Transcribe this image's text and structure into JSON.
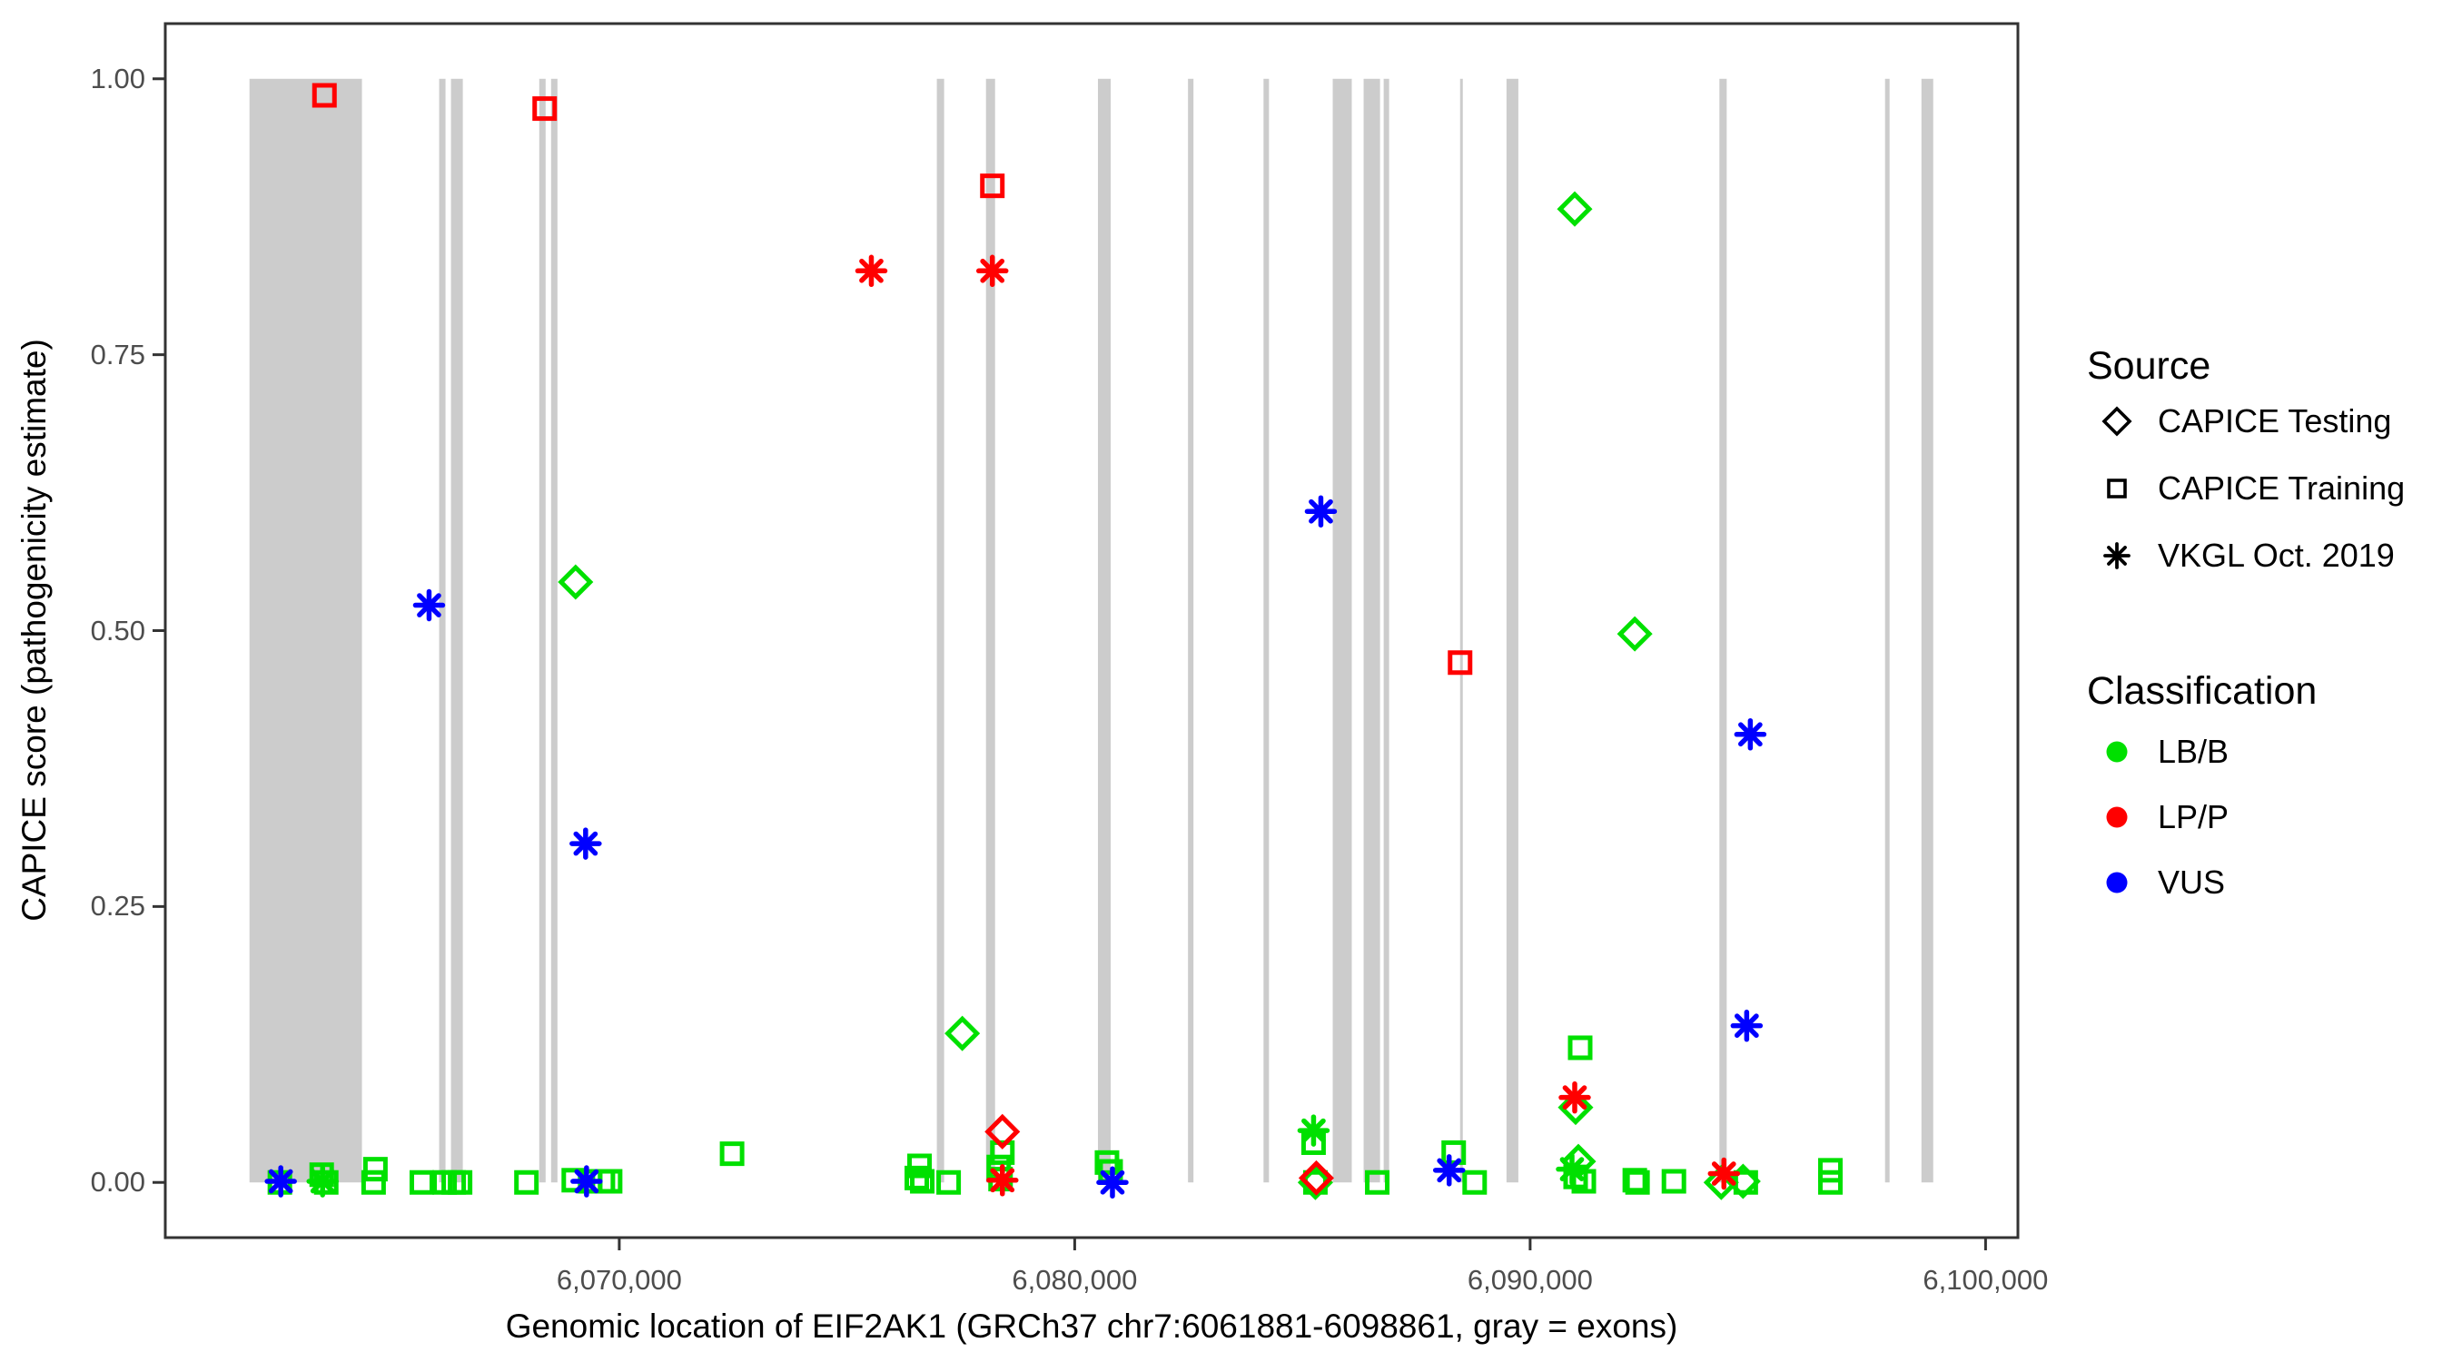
{
  "figure": {
    "y_axis_title": "CAPICE score (pathogenicity estimate)",
    "x_axis_title": "Genomic location of EIF2AK1 (GRCh37 chr7:6061881-6098861, gray = exons)"
  },
  "legend": {
    "source": {
      "title": "Source",
      "items": [
        {
          "shape": "diamond",
          "label": "CAPICE Testing"
        },
        {
          "shape": "square",
          "label": "CAPICE Training"
        },
        {
          "shape": "asterisk",
          "label": "VKGL Oct. 2019"
        }
      ]
    },
    "classification": {
      "title": "Classification",
      "items": [
        {
          "label": "LB/B",
          "color": "#00E000"
        },
        {
          "label": "LP/P",
          "color": "#FF0000"
        },
        {
          "label": "VUS",
          "color": "#0000FF"
        }
      ]
    }
  },
  "colors": {
    "lbb": "#00E000",
    "lpp": "#FF0000",
    "vus": "#0000FF",
    "exon_gray": "#CCCCCC",
    "panel_border": "#333333",
    "tick_label": "#4d4d4d"
  },
  "chart_data": {
    "type": "scatter",
    "title": "",
    "xlabel": "Genomic location of EIF2AK1 (GRCh37 chr7:6061881-6098861, gray = exons)",
    "ylabel": "CAPICE score (pathogenicity estimate)",
    "xlim": [
      6060032,
      6100710
    ],
    "ylim": [
      -0.05,
      1.05
    ],
    "grid": false,
    "legend_position": "right",
    "x_ticks": [
      {
        "value": 6070000,
        "label": "6,070,000"
      },
      {
        "value": 6080000,
        "label": "6,080,000"
      },
      {
        "value": 6090000,
        "label": "6,090,000"
      },
      {
        "value": 6100000,
        "label": "6,100,000"
      }
    ],
    "y_ticks": [
      {
        "value": 0.0,
        "label": "0.00"
      },
      {
        "value": 0.25,
        "label": "0.25"
      },
      {
        "value": 0.5,
        "label": "0.50"
      },
      {
        "value": 0.75,
        "label": "0.75"
      },
      {
        "value": 1.0,
        "label": "1.00"
      }
    ],
    "shape_meaning": {
      "diamond": "CAPICE Testing",
      "square": "CAPICE Training",
      "asterisk": "VKGL Oct. 2019"
    },
    "class_colors": {
      "LB/B": "#00E000",
      "LP/P": "#FF0000",
      "VUS": "#0000FF"
    },
    "exon_bands": [
      [
        6061881,
        6064350
      ],
      [
        6066045,
        6066185
      ],
      [
        6066305,
        6066565
      ],
      [
        6068243,
        6068383
      ],
      [
        6068503,
        6068643
      ],
      [
        6076973,
        6077133
      ],
      [
        6078052,
        6078252
      ],
      [
        6080510,
        6080790
      ],
      [
        6082488,
        6082608
      ],
      [
        6084146,
        6084266
      ],
      [
        6085665,
        6086084
      ],
      [
        6086344,
        6086704
      ],
      [
        6086784,
        6086904
      ],
      [
        6088462,
        6088522
      ],
      [
        6089481,
        6089741
      ],
      [
        6094156,
        6094316
      ],
      [
        6097793,
        6097892
      ],
      [
        6098592,
        6098851
      ]
    ],
    "points": [
      {
        "pos": 6062548,
        "score": 0.0,
        "source": "CAPICE Training",
        "class": "LB/B"
      },
      {
        "pos": 6063466,
        "score": 0.007,
        "source": "CAPICE Training",
        "class": "LB/B"
      },
      {
        "pos": 6063566,
        "score": 0.0,
        "source": "CAPICE Training",
        "class": "LB/B"
      },
      {
        "pos": 6064646,
        "score": 0.012,
        "source": "CAPICE Training",
        "class": "LB/B"
      },
      {
        "pos": 6064606,
        "score": 0.0,
        "source": "CAPICE Training",
        "class": "LB/B"
      },
      {
        "pos": 6065665,
        "score": 0.0,
        "source": "CAPICE Training",
        "class": "LB/B"
      },
      {
        "pos": 6066165,
        "score": 0.0,
        "source": "CAPICE Training",
        "class": "LB/B"
      },
      {
        "pos": 6066365,
        "score": 0.0,
        "source": "CAPICE Training",
        "class": "LB/B"
      },
      {
        "pos": 6066505,
        "score": 0.0,
        "source": "CAPICE Training",
        "class": "LB/B"
      },
      {
        "pos": 6067962,
        "score": 0.0,
        "source": "CAPICE Training",
        "class": "LB/B"
      },
      {
        "pos": 6069001,
        "score": 0.002,
        "source": "CAPICE Training",
        "class": "LB/B"
      },
      {
        "pos": 6069361,
        "score": 0.001,
        "source": "CAPICE Training",
        "class": "LB/B"
      },
      {
        "pos": 6069641,
        "score": 0.001,
        "source": "CAPICE Training",
        "class": "LB/B"
      },
      {
        "pos": 6069800,
        "score": 0.001,
        "source": "CAPICE Training",
        "class": "LB/B"
      },
      {
        "pos": 6072477,
        "score": 0.026,
        "source": "CAPICE Training",
        "class": "LB/B"
      },
      {
        "pos": 6076593,
        "score": 0.015,
        "source": "CAPICE Training",
        "class": "LB/B"
      },
      {
        "pos": 6076533,
        "score": 0.004,
        "source": "CAPICE Training",
        "class": "LB/B"
      },
      {
        "pos": 6076653,
        "score": 0.001,
        "source": "CAPICE Training",
        "class": "LB/B"
      },
      {
        "pos": 6077232,
        "score": 0.0,
        "source": "CAPICE Training",
        "class": "LB/B"
      },
      {
        "pos": 6078412,
        "score": 0.027,
        "source": "CAPICE Training",
        "class": "LB/B"
      },
      {
        "pos": 6078332,
        "score": 0.014,
        "source": "CAPICE Training",
        "class": "LB/B"
      },
      {
        "pos": 6078372,
        "score": 0.003,
        "source": "CAPICE Training",
        "class": "LB/B"
      },
      {
        "pos": 6080709,
        "score": 0.018,
        "source": "CAPICE Training",
        "class": "LB/B"
      },
      {
        "pos": 6080789,
        "score": 0.01,
        "source": "CAPICE Training",
        "class": "LB/B"
      },
      {
        "pos": 6085245,
        "score": 0.036,
        "source": "CAPICE Training",
        "class": "LB/B"
      },
      {
        "pos": 6085285,
        "score": 0.0,
        "source": "CAPICE Training",
        "class": "LB/B"
      },
      {
        "pos": 6086643,
        "score": 0.0,
        "source": "CAPICE Training",
        "class": "LB/B"
      },
      {
        "pos": 6088322,
        "score": 0.027,
        "source": "CAPICE Training",
        "class": "LB/B"
      },
      {
        "pos": 6088782,
        "score": 0.0,
        "source": "CAPICE Training",
        "class": "LB/B"
      },
      {
        "pos": 6091099,
        "score": 0.122,
        "source": "CAPICE Training",
        "class": "LB/B"
      },
      {
        "pos": 6090999,
        "score": 0.005,
        "source": "CAPICE Training",
        "class": "LB/B"
      },
      {
        "pos": 6091179,
        "score": 0.001,
        "source": "CAPICE Training",
        "class": "LB/B"
      },
      {
        "pos": 6092298,
        "score": 0.002,
        "source": "CAPICE Training",
        "class": "LB/B"
      },
      {
        "pos": 6092358,
        "score": 0.0,
        "source": "CAPICE Training",
        "class": "LB/B"
      },
      {
        "pos": 6093157,
        "score": 0.001,
        "source": "CAPICE Training",
        "class": "LB/B"
      },
      {
        "pos": 6094735,
        "score": 0.0,
        "source": "CAPICE Training",
        "class": "LB/B"
      },
      {
        "pos": 6096593,
        "score": 0.011,
        "source": "CAPICE Training",
        "class": "LB/B"
      },
      {
        "pos": 6096593,
        "score": 0.0,
        "source": "CAPICE Training",
        "class": "LB/B"
      },
      {
        "pos": 6063527,
        "score": 0.985,
        "source": "CAPICE Training",
        "class": "LP/P"
      },
      {
        "pos": 6068362,
        "score": 0.973,
        "source": "CAPICE Training",
        "class": "LP/P"
      },
      {
        "pos": 6078192,
        "score": 0.903,
        "source": "CAPICE Training",
        "class": "LP/P"
      },
      {
        "pos": 6088462,
        "score": 0.471,
        "source": "CAPICE Training",
        "class": "LP/P"
      },
      {
        "pos": 6090979,
        "score": 0.882,
        "source": "CAPICE Testing",
        "class": "LB/B"
      },
      {
        "pos": 6069041,
        "score": 0.544,
        "source": "CAPICE Testing",
        "class": "LB/B"
      },
      {
        "pos": 6092298,
        "score": 0.497,
        "source": "CAPICE Testing",
        "class": "LB/B"
      },
      {
        "pos": 6077532,
        "score": 0.135,
        "source": "CAPICE Testing",
        "class": "LB/B"
      },
      {
        "pos": 6090999,
        "score": 0.068,
        "source": "CAPICE Testing",
        "class": "LB/B"
      },
      {
        "pos": 6091059,
        "score": 0.019,
        "source": "CAPICE Testing",
        "class": "LB/B"
      },
      {
        "pos": 6094196,
        "score": 0.0,
        "source": "CAPICE Testing",
        "class": "LB/B"
      },
      {
        "pos": 6094675,
        "score": 0.001,
        "source": "CAPICE Testing",
        "class": "LB/B"
      },
      {
        "pos": 6085285,
        "score": 0.0,
        "source": "CAPICE Testing",
        "class": "LB/B"
      },
      {
        "pos": 6078412,
        "score": 0.046,
        "source": "CAPICE Testing",
        "class": "LP/P"
      },
      {
        "pos": 6085305,
        "score": 0.004,
        "source": "CAPICE Testing",
        "class": "LP/P"
      },
      {
        "pos": 6075535,
        "score": 0.826,
        "source": "VKGL Oct. 2019",
        "class": "LP/P"
      },
      {
        "pos": 6078192,
        "score": 0.826,
        "source": "VKGL Oct. 2019",
        "class": "LP/P"
      },
      {
        "pos": 6090979,
        "score": 0.077,
        "source": "VKGL Oct. 2019",
        "class": "LP/P"
      },
      {
        "pos": 6094255,
        "score": 0.008,
        "source": "VKGL Oct. 2019",
        "class": "LP/P"
      },
      {
        "pos": 6078412,
        "score": 0.002,
        "source": "VKGL Oct. 2019",
        "class": "LP/P"
      },
      {
        "pos": 6065824,
        "score": 0.523,
        "source": "VKGL Oct. 2019",
        "class": "VUS"
      },
      {
        "pos": 6085405,
        "score": 0.608,
        "source": "VKGL Oct. 2019",
        "class": "VUS"
      },
      {
        "pos": 6069261,
        "score": 0.307,
        "source": "VKGL Oct. 2019",
        "class": "VUS"
      },
      {
        "pos": 6094835,
        "score": 0.406,
        "source": "VKGL Oct. 2019",
        "class": "VUS"
      },
      {
        "pos": 6094755,
        "score": 0.142,
        "source": "VKGL Oct. 2019",
        "class": "VUS"
      },
      {
        "pos": 6062568,
        "score": 0.001,
        "source": "VKGL Oct. 2019",
        "class": "VUS"
      },
      {
        "pos": 6069281,
        "score": 0.001,
        "source": "VKGL Oct. 2019",
        "class": "VUS"
      },
      {
        "pos": 6080829,
        "score": 0.0,
        "source": "VKGL Oct. 2019",
        "class": "VUS"
      },
      {
        "pos": 6088222,
        "score": 0.011,
        "source": "VKGL Oct. 2019",
        "class": "VUS"
      },
      {
        "pos": 6063486,
        "score": 0.001,
        "source": "VKGL Oct. 2019",
        "class": "LB/B"
      },
      {
        "pos": 6085245,
        "score": 0.047,
        "source": "VKGL Oct. 2019",
        "class": "LB/B"
      },
      {
        "pos": 6090919,
        "score": 0.012,
        "source": "VKGL Oct. 2019",
        "class": "LB/B"
      }
    ]
  }
}
